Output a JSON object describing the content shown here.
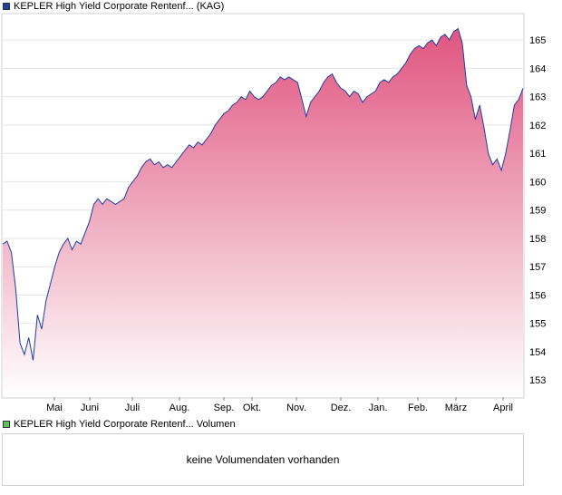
{
  "legend": {
    "price_label": "KEPLER High Yield Corporate Rentenf... (KAG)",
    "volume_label": "KEPLER High Yield Corporate Rentenf... Volumen"
  },
  "volume_panel": {
    "message": "keine Volumendaten vorhanden"
  },
  "colors": {
    "line": "#1f3f9f",
    "fill_top": "#e05580",
    "fill_bottom": "#ffffff",
    "grid": "#e4e4e4"
  },
  "chart_data": {
    "type": "area",
    "series": [
      {
        "name": "KEPLER High Yield Corporate Rentenf... (KAG)",
        "values": [
          157.8,
          157.9,
          157.5,
          156.2,
          154.3,
          153.9,
          154.5,
          153.7,
          155.3,
          154.8,
          155.8,
          156.4,
          157.0,
          157.5,
          157.8,
          158.0,
          157.6,
          157.9,
          157.8,
          158.2,
          158.6,
          159.2,
          159.4,
          159.2,
          159.4,
          159.3,
          159.2,
          159.3,
          159.4,
          159.8,
          160.0,
          160.2,
          160.5,
          160.7,
          160.8,
          160.6,
          160.7,
          160.5,
          160.6,
          160.5,
          160.7,
          160.9,
          161.1,
          161.3,
          161.2,
          161.4,
          161.3,
          161.5,
          161.7,
          162.0,
          162.2,
          162.4,
          162.5,
          162.7,
          162.8,
          163.0,
          162.9,
          163.2,
          163.0,
          162.9,
          163.0,
          163.2,
          163.4,
          163.5,
          163.7,
          163.6,
          163.7,
          163.6,
          163.5,
          162.9,
          162.3,
          162.8,
          163.0,
          163.2,
          163.5,
          163.7,
          163.8,
          163.5,
          163.3,
          163.2,
          163.0,
          163.2,
          163.1,
          162.8,
          163.0,
          163.1,
          163.2,
          163.5,
          163.6,
          163.5,
          163.7,
          163.8,
          164.0,
          164.2,
          164.5,
          164.7,
          164.8,
          164.7,
          164.9,
          165.0,
          164.8,
          165.1,
          165.2,
          165.0,
          165.3,
          165.4,
          164.9,
          163.4,
          163.0,
          162.2,
          162.7,
          161.9,
          161.0,
          160.6,
          160.8,
          160.4,
          161.0,
          161.8,
          162.7,
          162.9,
          163.3
        ]
      }
    ],
    "x_ticks": [
      "Mai",
      "Juni",
      "Juli",
      "Aug.",
      "Sep.",
      "Okt.",
      "Nov.",
      "Dez.",
      "Jan.",
      "Feb.",
      "März",
      "April"
    ],
    "y_ticks": [
      153,
      154,
      155,
      156,
      157,
      158,
      159,
      160,
      161,
      162,
      163,
      164,
      165
    ],
    "ylim": [
      152.4,
      165.9
    ],
    "grid": true,
    "xlabel": "",
    "ylabel": "",
    "title": ""
  }
}
